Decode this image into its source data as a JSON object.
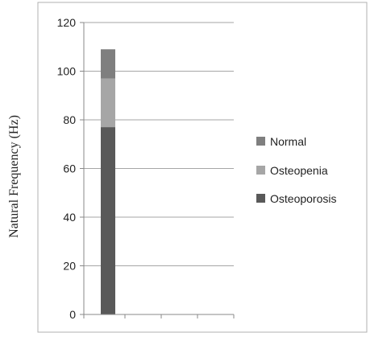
{
  "chart_data": {
    "type": "bar",
    "stacked": true,
    "categories": [
      ""
    ],
    "series": [
      {
        "name": "Osteoporosis",
        "values": [
          77
        ],
        "color": "#595959"
      },
      {
        "name": "Osteopenia",
        "values": [
          20
        ],
        "color": "#a6a6a6"
      },
      {
        "name": "Normal",
        "values": [
          12
        ],
        "color": "#7f7f7f"
      }
    ],
    "legend_order": [
      "Normal",
      "Osteopenia",
      "Osteoporosis"
    ],
    "ylabel": "Natural Frequency (Hz)",
    "xlabel": "",
    "ylim": [
      0,
      120
    ],
    "yticks": [
      0,
      20,
      40,
      60,
      80,
      100,
      120
    ],
    "grid": true,
    "legend_position": "right",
    "colors": {
      "grid": "#a6a6a6",
      "axis": "#888888",
      "frame": "#b0b0b0"
    }
  }
}
